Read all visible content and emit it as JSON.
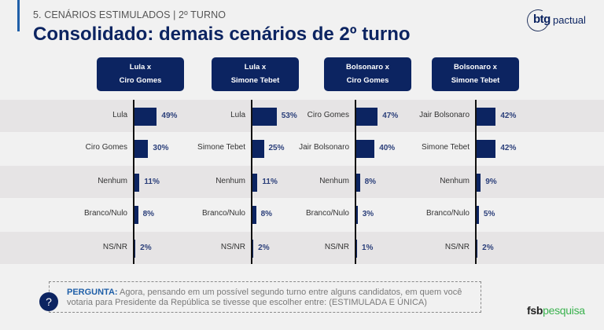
{
  "header": {
    "subtitle": "5. CENÁRIOS ESTIMULADOS | 2º TURNO",
    "title": "Consolidado: demais cenários de 2º turno",
    "logo_btg": "btg",
    "logo_pactual": "pactual"
  },
  "colors": {
    "bar": "#0c2461",
    "button": "#0c2461",
    "value_text": "#2b3f7a",
    "accent": "#1f5fa8",
    "fsb_green": "#3bb24f"
  },
  "chart_data": [
    {
      "type": "bar",
      "orientation": "horizontal",
      "title_line1": "Lula x",
      "title_line2": "Ciro Gomes",
      "categories": [
        "Lula",
        "Ciro Gomes",
        "Nenhum",
        "Branco/Nulo",
        "NS/NR"
      ],
      "values": [
        49,
        30,
        11,
        8,
        2
      ],
      "value_labels": [
        "49%",
        "30%",
        "11%",
        "8%",
        "2%"
      ],
      "unit": "%",
      "xlim": [
        0,
        100
      ]
    },
    {
      "type": "bar",
      "orientation": "horizontal",
      "title_line1": "Lula x",
      "title_line2": "Simone Tebet",
      "categories": [
        "Lula",
        "Simone Tebet",
        "Nenhum",
        "Branco/Nulo",
        "NS/NR"
      ],
      "values": [
        53,
        25,
        11,
        8,
        2
      ],
      "value_labels": [
        "53%",
        "25%",
        "11%",
        "8%",
        "2%"
      ],
      "unit": "%",
      "xlim": [
        0,
        100
      ]
    },
    {
      "type": "bar",
      "orientation": "horizontal",
      "title_line1": "Bolsonaro x",
      "title_line2": "Ciro Gomes",
      "categories": [
        "Ciro Gomes",
        "Jair Bolsonaro",
        "Nenhum",
        "Branco/Nulo",
        "NS/NR"
      ],
      "values": [
        47,
        40,
        8,
        3,
        1
      ],
      "value_labels": [
        "47%",
        "40%",
        "8%",
        "3%",
        "1%"
      ],
      "unit": "%",
      "xlim": [
        0,
        100
      ]
    },
    {
      "type": "bar",
      "orientation": "horizontal",
      "title_line1": "Bolsonaro x",
      "title_line2": "Simone Tebet",
      "categories": [
        "Jair Bolsonaro",
        "Simone Tebet",
        "Nenhum",
        "Branco/Nulo",
        "NS/NR"
      ],
      "values": [
        42,
        42,
        9,
        5,
        2
      ],
      "value_labels": [
        "42%",
        "42%",
        "9%",
        "5%",
        "2%"
      ],
      "unit": "%",
      "xlim": [
        0,
        100
      ]
    }
  ],
  "question": {
    "icon": "question-mark-icon",
    "icon_glyph": "?",
    "label": "PERGUNTA:",
    "text": " Agora, pensando em um possível segundo turno entre alguns candidatos, em quem você votaria para Presidente da República se tivesse que escolher entre: (ESTIMULADA E ÚNICA)"
  },
  "footer": {
    "fsb_bold": "fsb",
    "fsb_light": "pesquisa"
  }
}
